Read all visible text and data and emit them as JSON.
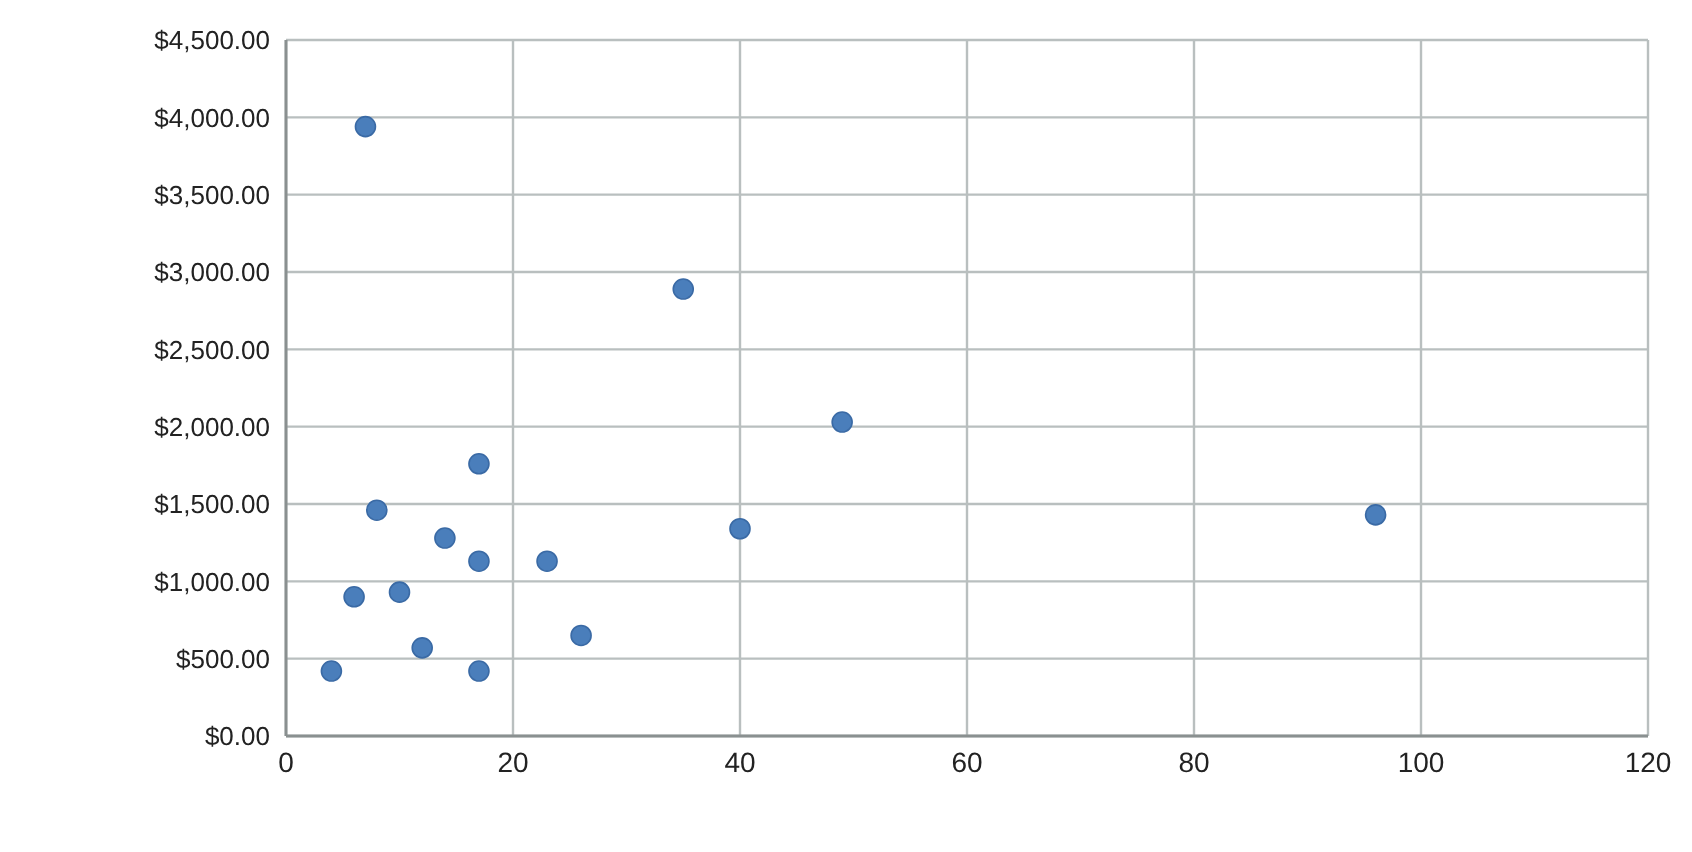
{
  "chart_data": {
    "type": "scatter",
    "x": [
      7,
      35,
      49,
      17,
      8,
      40,
      14,
      17,
      23,
      6,
      10,
      26,
      12,
      4,
      17,
      96
    ],
    "series": [
      {
        "color": "#4a7ebb",
        "values": [
          3940,
          2890,
          2030,
          1760,
          1460,
          1340,
          1280,
          1130,
          1130,
          900,
          930,
          650,
          570,
          420,
          420,
          1430
        ]
      }
    ],
    "xlim": [
      0,
      120
    ],
    "xticks": [
      0,
      20,
      40,
      60,
      80,
      100,
      120
    ],
    "ylim": [
      0,
      4500
    ],
    "yticks": [
      {
        "value": 0,
        "label": "$0.00"
      },
      {
        "value": 500,
        "label": "$500.00"
      },
      {
        "value": 1000,
        "label": "$1,000.00"
      },
      {
        "value": 1500,
        "label": "$1,500.00"
      },
      {
        "value": 2000,
        "label": "$2,000.00"
      },
      {
        "value": 2500,
        "label": "$2,500.00"
      },
      {
        "value": 3000,
        "label": "$3,000.00"
      },
      {
        "value": 3500,
        "label": "$3,500.00"
      },
      {
        "value": 4000,
        "label": "$4,000.00"
      },
      {
        "value": 4500,
        "label": "$4,500.00"
      }
    ],
    "grid": true,
    "marker": "circle",
    "legend": false
  }
}
